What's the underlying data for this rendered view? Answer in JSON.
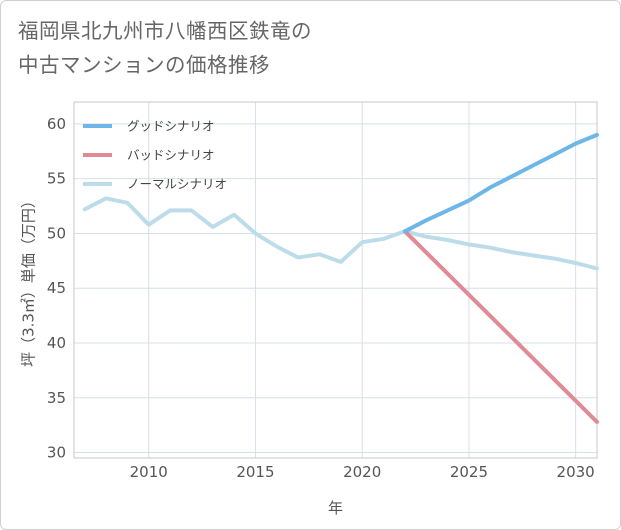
{
  "chart_data": {
    "type": "line",
    "title": [
      "福岡県北九州市八幡西区鉄竜の",
      "中古マンションの価格推移"
    ],
    "xlabel": "年",
    "ylabel": "坪（3.3㎡）単価（万円）",
    "xlim": [
      2006.5,
      2031
    ],
    "ylim": [
      29.5,
      62
    ],
    "xticks": [
      2010,
      2015,
      2020,
      2025,
      2030
    ],
    "yticks": [
      30,
      35,
      40,
      45,
      50,
      55,
      60
    ],
    "grid": true,
    "legend_position": "top-left",
    "series": [
      {
        "name": "グッドシナリオ",
        "color": "#6cb6e8",
        "x": [
          2022,
          2023,
          2024,
          2025,
          2026,
          2027,
          2028,
          2029,
          2030,
          2031
        ],
        "y": [
          50.2,
          51.2,
          52.1,
          53.0,
          54.2,
          55.2,
          56.2,
          57.2,
          58.2,
          59.0
        ]
      },
      {
        "name": "バッドシナリオ",
        "color": "#e08a96",
        "x": [
          2022,
          2031
        ],
        "y": [
          50.2,
          32.8
        ]
      },
      {
        "name": "ノーマルシナリオ",
        "color": "#bddcea",
        "x": [
          2007,
          2008,
          2009,
          2010,
          2011,
          2012,
          2013,
          2014,
          2015,
          2016,
          2017,
          2018,
          2019,
          2020,
          2021,
          2022,
          2023,
          2024,
          2025,
          2026,
          2027,
          2028,
          2029,
          2030,
          2031
        ],
        "y": [
          52.2,
          53.2,
          52.8,
          50.8,
          52.1,
          52.1,
          50.6,
          51.7,
          50.0,
          48.8,
          47.8,
          48.1,
          47.4,
          49.2,
          49.5,
          50.2,
          49.7,
          49.4,
          49.0,
          48.7,
          48.3,
          48.0,
          47.7,
          47.3,
          46.8
        ]
      }
    ]
  }
}
